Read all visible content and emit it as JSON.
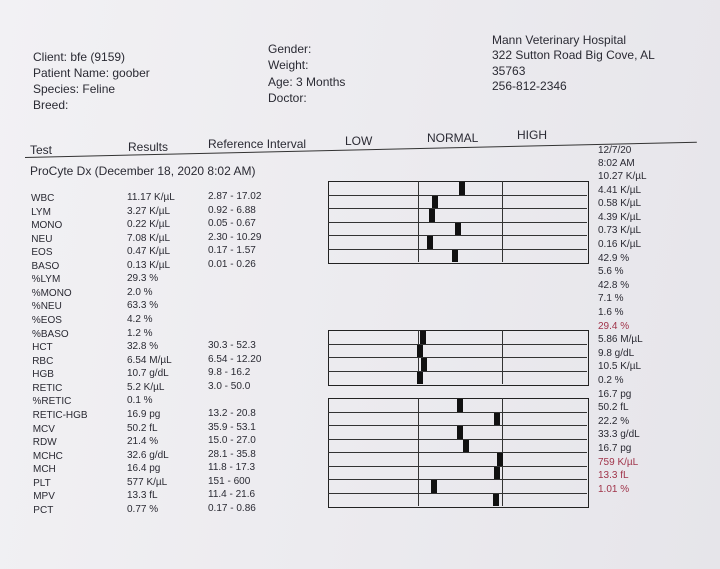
{
  "patient": {
    "client": "Client: bfe (9159)",
    "name": "Patient Name: goober",
    "species": "Species: Feline",
    "breed": "Breed:"
  },
  "details": {
    "gender": "Gender:",
    "weight": "Weight:",
    "age": "Age: 3 Months",
    "doctor": "Doctor:"
  },
  "clinic": {
    "name": "Mann Veterinary Hospital",
    "address": "322 Sutton Road Big Cove, AL",
    "zip": "35763",
    "phone": "256-812-2346"
  },
  "columns": {
    "test": "Test",
    "results": "Results",
    "reference": "Reference Interval",
    "low": "LOW",
    "normal": "NORMAL",
    "high": "HIGH"
  },
  "section": "ProCyte Dx (December 18, 2020 8:02 AM)",
  "previous": {
    "date": "12/7/20",
    "time": "8:02 AM",
    "values": [
      "10.27 K/µL",
      "4.41 K/µL",
      "0.58 K/µL",
      "4.39 K/µL",
      "0.73 K/µL",
      "0.16 K/µL",
      "42.9 %",
      "5.6 %",
      "42.8 %",
      "7.1 %",
      "1.6 %",
      "29.4 %",
      "5.86 M/µL",
      "9.8 g/dL",
      "10.5 K/µL",
      "0.2 %",
      "16.7 pg",
      "50.2 fL",
      "22.2 %",
      "33.3 g/dL",
      "16.7 pg",
      "759 K/µL",
      "13.3 fL",
      "1.01 %"
    ]
  },
  "rows": [
    [
      "WBC",
      "11.17 K/µL",
      "2.87 - 17.02"
    ],
    [
      "LYM",
      "3.27 K/µL",
      "0.92 - 6.88"
    ],
    [
      "MONO",
      "0.22 K/µL",
      "0.05 - 0.67"
    ],
    [
      "NEU",
      "7.08 K/µL",
      "2.30 - 10.29"
    ],
    [
      "EOS",
      "0.47 K/µL",
      "0.17 - 1.57"
    ],
    [
      "BASO",
      "0.13 K/µL",
      "0.01 - 0.26"
    ],
    [
      "%LYM",
      "29.3 %"
    ],
    [
      "%MONO",
      "2.0 %"
    ],
    [
      "%NEU",
      "63.3 %"
    ],
    [
      "%EOS",
      "4.2 %"
    ],
    [
      "%BASO",
      "1.2 %"
    ],
    [
      "HCT",
      "32.8 %",
      "30.3 - 52.3"
    ],
    [
      "RBC",
      "6.54 M/µL",
      "6.54 - 12.20"
    ],
    [
      "HGB",
      "10.7 g/dL",
      "9.8 - 16.2"
    ],
    [
      "RETIC",
      "5.2 K/µL",
      "3.0 - 50.0"
    ],
    [
      "%RETIC",
      "0.1 %"
    ],
    [
      "RETIC-HGB",
      "16.9 pg",
      "13.2 - 20.8"
    ],
    [
      "MCV",
      "50.2 fL",
      "35.9 - 53.1"
    ],
    [
      "RDW",
      "21.4 %",
      "15.0 - 27.0"
    ],
    [
      "MCHC",
      "32.6 g/dL",
      "28.1 - 35.8"
    ],
    [
      "MCH",
      "16.4 pg",
      "11.8 - 17.3"
    ],
    [
      "PLT",
      "577 K/µL",
      "151 - 600"
    ],
    [
      "MPV",
      "13.3 fL",
      "11.4 - 21.6"
    ],
    [
      "PCT",
      "0.77 %",
      "0.17 - 0.86"
    ]
  ]
}
